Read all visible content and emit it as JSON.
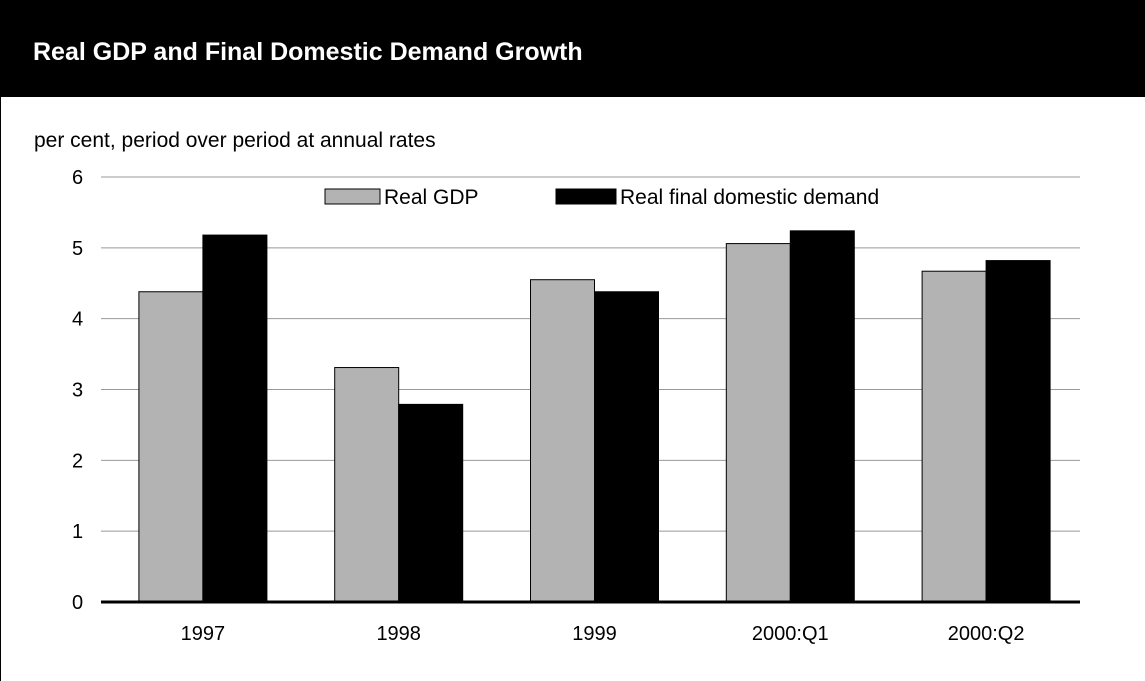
{
  "header": {
    "title": "Real GDP and Final Domestic Demand Growth"
  },
  "chart_data": {
    "type": "bar",
    "title": "Real GDP and Final Domestic Demand Growth",
    "ylabel": "per cent, period over period at annual rates",
    "xlabel": "",
    "categories": [
      "1997",
      "1998",
      "1999",
      "2000:Q1",
      "2000:Q2"
    ],
    "series": [
      {
        "name": "Real GDP",
        "color": "#b3b3b3",
        "values": [
          4.38,
          3.31,
          4.55,
          5.06,
          4.67
        ]
      },
      {
        "name": "Real final domestic demand",
        "color": "#000000",
        "values": [
          5.18,
          2.79,
          4.38,
          5.24,
          4.82
        ]
      }
    ],
    "ylim": [
      0,
      6
    ],
    "yticks": [
      "0",
      "1",
      "2",
      "3",
      "4",
      "5",
      "6"
    ],
    "grid": true,
    "legend": "top-center"
  }
}
